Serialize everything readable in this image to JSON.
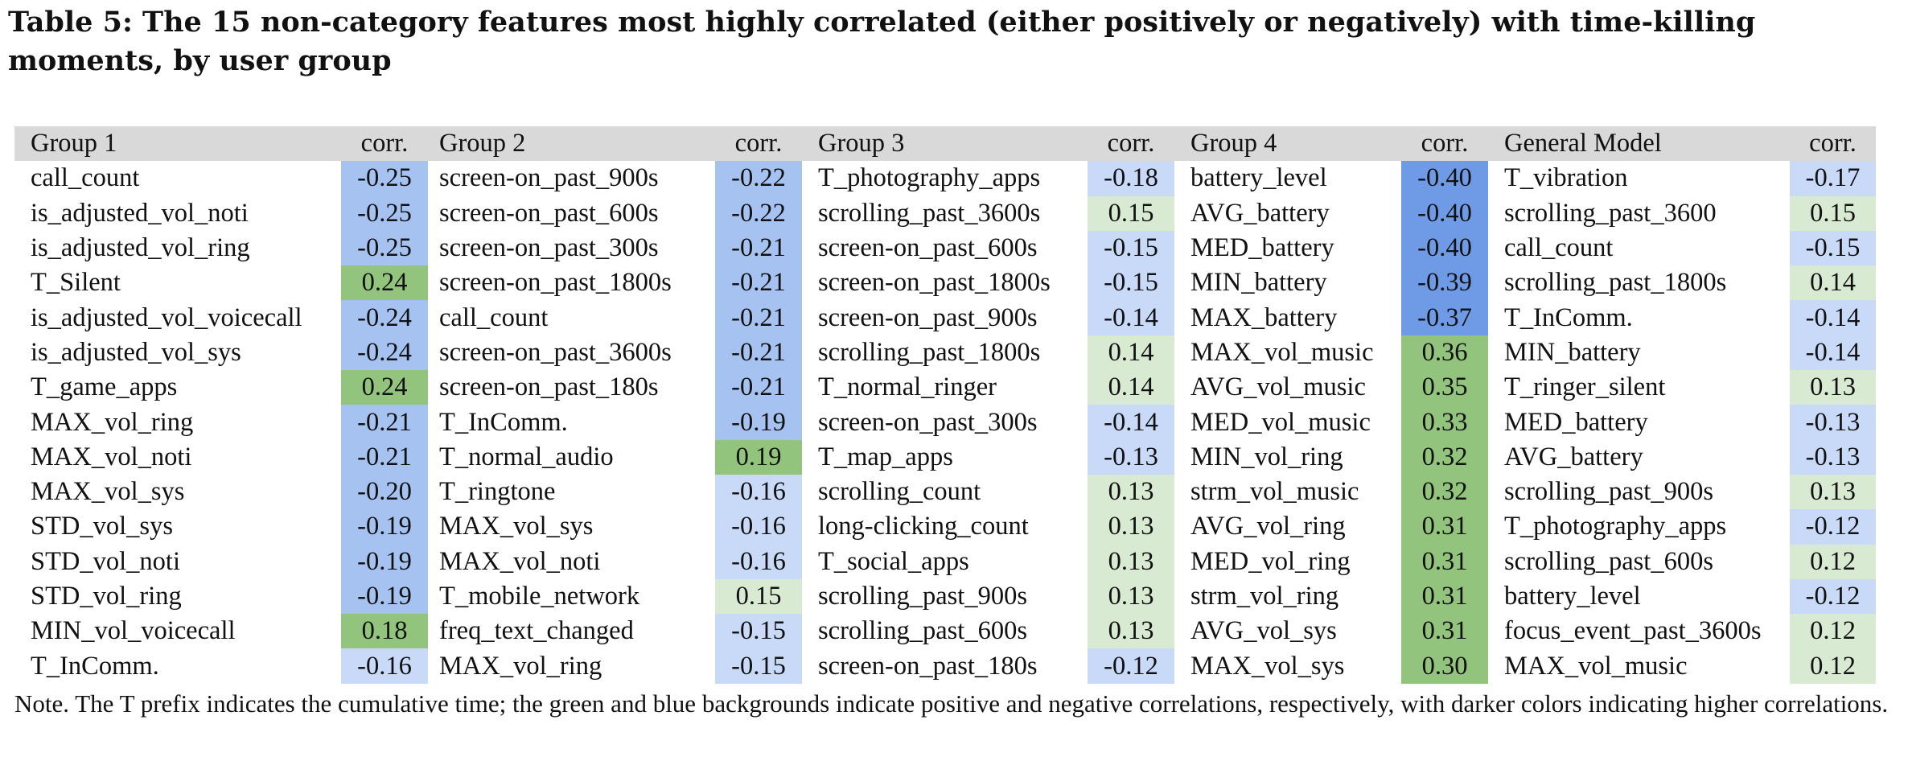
{
  "caption": "Table 5: The 15 non-category features most highly correlated (either positively or negatively) with time-killing moments, by user group",
  "headers": [
    "Group 1",
    "corr.",
    "Group 2",
    "corr.",
    "Group 3",
    "corr.",
    "Group 4",
    "corr.",
    "General Model",
    "corr."
  ],
  "rows": [
    [
      [
        "call_count",
        "-0.25"
      ],
      [
        "screen-on_past_900s",
        "-0.22"
      ],
      [
        "T_photography_apps",
        "-0.18"
      ],
      [
        "battery_level",
        "-0.40"
      ],
      [
        "T_vibration",
        "-0.17"
      ]
    ],
    [
      [
        "is_adjusted_vol_noti",
        "-0.25"
      ],
      [
        "screen-on_past_600s",
        "-0.22"
      ],
      [
        "scrolling_past_3600s",
        "0.15"
      ],
      [
        "AVG_battery",
        "-0.40"
      ],
      [
        "scrolling_past_3600",
        "0.15"
      ]
    ],
    [
      [
        "is_adjusted_vol_ring",
        "-0.25"
      ],
      [
        "screen-on_past_300s",
        "-0.21"
      ],
      [
        "screen-on_past_600s",
        "-0.15"
      ],
      [
        "MED_battery",
        "-0.40"
      ],
      [
        "call_count",
        "-0.15"
      ]
    ],
    [
      [
        "T_Silent",
        "0.24"
      ],
      [
        "screen-on_past_1800s",
        "-0.21"
      ],
      [
        "screen-on_past_1800s",
        "-0.15"
      ],
      [
        "MIN_battery",
        "-0.39"
      ],
      [
        "scrolling_past_1800s",
        "0.14"
      ]
    ],
    [
      [
        "is_adjusted_vol_voicecall",
        "-0.24"
      ],
      [
        "call_count",
        "-0.21"
      ],
      [
        "screen-on_past_900s",
        "-0.14"
      ],
      [
        "MAX_battery",
        "-0.37"
      ],
      [
        "T_InComm.",
        "-0.14"
      ]
    ],
    [
      [
        "is_adjusted_vol_sys",
        "-0.24"
      ],
      [
        "screen-on_past_3600s",
        "-0.21"
      ],
      [
        "scrolling_past_1800s",
        "0.14"
      ],
      [
        "MAX_vol_music",
        "0.36"
      ],
      [
        "MIN_battery",
        "-0.14"
      ]
    ],
    [
      [
        "T_game_apps",
        "0.24"
      ],
      [
        "screen-on_past_180s",
        "-0.21"
      ],
      [
        "T_normal_ringer",
        "0.14"
      ],
      [
        "AVG_vol_music",
        "0.35"
      ],
      [
        "T_ringer_silent",
        "0.13"
      ]
    ],
    [
      [
        "MAX_vol_ring",
        "-0.21"
      ],
      [
        "T_InComm.",
        "-0.19"
      ],
      [
        "screen-on_past_300s",
        "-0.14"
      ],
      [
        "MED_vol_music",
        "0.33"
      ],
      [
        "MED_battery",
        "-0.13"
      ]
    ],
    [
      [
        "MAX_vol_noti",
        "-0.21"
      ],
      [
        "T_normal_audio",
        "0.19"
      ],
      [
        "T_map_apps",
        "-0.13"
      ],
      [
        "MIN_vol_ring",
        "0.32"
      ],
      [
        "AVG_battery",
        "-0.13"
      ]
    ],
    [
      [
        "MAX_vol_sys",
        "-0.20"
      ],
      [
        "T_ringtone",
        "-0.16"
      ],
      [
        "scrolling_count",
        "0.13"
      ],
      [
        "strm_vol_music",
        "0.32"
      ],
      [
        "scrolling_past_900s",
        "0.13"
      ]
    ],
    [
      [
        "STD_vol_sys",
        "-0.19"
      ],
      [
        "MAX_vol_sys",
        "-0.16"
      ],
      [
        "long-clicking_count",
        "0.13"
      ],
      [
        "AVG_vol_ring",
        "0.31"
      ],
      [
        "T_photography_apps",
        "-0.12"
      ]
    ],
    [
      [
        "STD_vol_noti",
        "-0.19"
      ],
      [
        "MAX_vol_noti",
        "-0.16"
      ],
      [
        "T_social_apps",
        "0.13"
      ],
      [
        "MED_vol_ring",
        "0.31"
      ],
      [
        "scrolling_past_600s",
        "0.12"
      ]
    ],
    [
      [
        "STD_vol_ring",
        "-0.19"
      ],
      [
        "T_mobile_network",
        "0.15"
      ],
      [
        "scrolling_past_900s",
        "0.13"
      ],
      [
        "strm_vol_ring",
        "0.31"
      ],
      [
        "battery_level",
        "-0.12"
      ]
    ],
    [
      [
        "MIN_vol_voicecall",
        "0.18"
      ],
      [
        "freq_text_changed",
        "-0.15"
      ],
      [
        "scrolling_past_600s",
        "0.13"
      ],
      [
        "AVG_vol_sys",
        "0.31"
      ],
      [
        "focus_event_past_3600s",
        "0.12"
      ]
    ],
    [
      [
        "T_InComm.",
        "-0.16"
      ],
      [
        "MAX_vol_ring",
        "-0.15"
      ],
      [
        "screen-on_past_180s",
        "-0.12"
      ],
      [
        "MAX_vol_sys",
        "0.30"
      ],
      [
        "MAX_vol_music",
        "0.12"
      ]
    ]
  ],
  "note": "Note. The T prefix indicates the cumulative time; the green and blue backgrounds indicate positive and negative correlations, respectively, with darker colors indicating higher correlations.",
  "colors": {
    "header_bg": "#d9d9d9",
    "blue_dark": "#6f9be6",
    "blue_mid": "#a5c2f0",
    "blue_light": "#c9daf8",
    "green_dark": "#93c47d",
    "green_light": "#d9ead3"
  }
}
